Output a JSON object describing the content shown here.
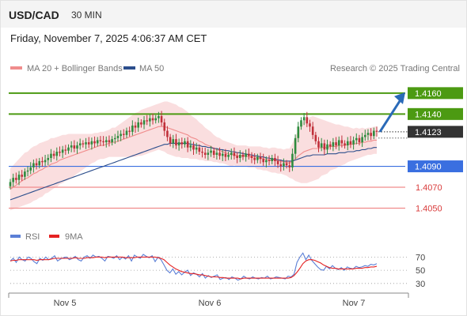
{
  "header": {
    "symbol": "USD/CAD",
    "timeframe": "30 MIN"
  },
  "datetime": "Friday, November 7, 2025 4:06:37 AM CET",
  "credit": "Research © 2025 Trading Central",
  "legend": {
    "bollinger": {
      "label": "MA 20 + Bollinger Bands",
      "color": "#f08c8c"
    },
    "ma50": {
      "label": "MA 50",
      "color": "#2c4e8c"
    },
    "rsi": {
      "label": "RSI",
      "color": "#5b7fd6"
    },
    "rsi_ma": {
      "label": "9MA",
      "color": "#e52222"
    }
  },
  "colors": {
    "bull": "#2e8b3e",
    "bear": "#c0303a",
    "resistance": "#4c9a12",
    "pivot": "#3a6fe0",
    "support": "#f08c8c",
    "last": "#333333",
    "arrow": "#2a6ab8",
    "band": "#fadadb"
  },
  "chart_data": [
    {
      "type": "candlestick",
      "title": "USD/CAD 30 MIN",
      "x_labels": [
        "Nov 5",
        "Nov 6",
        "Nov 7"
      ],
      "ylim": [
        1.403,
        1.4175
      ],
      "levels": [
        {
          "label": "1.4160",
          "value": 1.416,
          "kind": "resistance"
        },
        {
          "label": "1.4140",
          "value": 1.414,
          "kind": "resistance"
        },
        {
          "label": "1.4090",
          "value": 1.409,
          "kind": "pivot"
        },
        {
          "label": "1.4070",
          "value": 1.407,
          "kind": "support"
        },
        {
          "label": "1.4050",
          "value": 1.405,
          "kind": "support"
        }
      ],
      "last_price": {
        "label": "1.4123",
        "value": 1.4123
      },
      "forecast_target": 1.416,
      "close": [
        1.4075,
        1.4079,
        1.4077,
        1.4082,
        1.408,
        1.4085,
        1.4086,
        1.4089,
        1.4093,
        1.4091,
        1.4095,
        1.4094,
        1.4096,
        1.4098,
        1.4102,
        1.41,
        1.4104,
        1.4103,
        1.4106,
        1.4105,
        1.4108,
        1.411,
        1.4107,
        1.411,
        1.4112,
        1.4111,
        1.4113,
        1.4111,
        1.4114,
        1.4112,
        1.4115,
        1.4114,
        1.4113,
        1.4115,
        1.4113,
        1.4116,
        1.4117,
        1.4119,
        1.4121,
        1.412,
        1.4124,
        1.4123,
        1.4129,
        1.4127,
        1.4132,
        1.413,
        1.4134,
        1.4133,
        1.4136,
        1.4134,
        1.4136,
        1.4138,
        1.4132,
        1.4124,
        1.4118,
        1.4112,
        1.4116,
        1.411,
        1.4113,
        1.4111,
        1.4114,
        1.4108,
        1.411,
        1.4106,
        1.4108,
        1.4104,
        1.4103,
        1.4101,
        1.4103,
        1.4105,
        1.4101,
        1.4103,
        1.41,
        1.4102,
        1.4099,
        1.4101,
        1.4103,
        1.41,
        1.4098,
        1.4101,
        1.4099,
        1.4102,
        1.41,
        1.4098,
        1.4096,
        1.4099,
        1.4097,
        1.4094,
        1.4096,
        1.4095,
        1.4098,
        1.4095,
        1.4092,
        1.409,
        1.4093,
        1.4091,
        1.4089,
        1.4102,
        1.4117,
        1.4128,
        1.4134,
        1.4137,
        1.4131,
        1.4128,
        1.412,
        1.4114,
        1.4108,
        1.4112,
        1.4106,
        1.4111,
        1.4109,
        1.4113,
        1.411,
        1.4115,
        1.4112,
        1.411,
        1.4114,
        1.4111,
        1.4115,
        1.4117,
        1.4113,
        1.4118,
        1.412,
        1.4122,
        1.4119,
        1.4124,
        1.4123
      ],
      "ma20": [
        1.4068,
        1.407,
        1.4072,
        1.4074,
        1.4076,
        1.4078,
        1.4079,
        1.4081,
        1.4083,
        1.4084,
        1.4086,
        1.4087,
        1.4089,
        1.409,
        1.4092,
        1.4093,
        1.4094,
        1.4096,
        1.4097,
        1.4098,
        1.4099,
        1.41,
        1.4101,
        1.4102,
        1.4103,
        1.4104,
        1.4105,
        1.4106,
        1.4107,
        1.4108,
        1.4109,
        1.411,
        1.411,
        1.4111,
        1.4112,
        1.4113,
        1.4113,
        1.4114,
        1.4115,
        1.4116,
        1.4117,
        1.4118,
        1.4119,
        1.412,
        1.4121,
        1.4122,
        1.4123,
        1.4124,
        1.4125,
        1.4126,
        1.4127,
        1.4128,
        1.4128,
        1.4128,
        1.4127,
        1.4126,
        1.4125,
        1.4124,
        1.4123,
        1.4122,
        1.4121,
        1.412,
        1.4118,
        1.4117,
        1.4116,
        1.4114,
        1.4113,
        1.4111,
        1.411,
        1.4109,
        1.4107,
        1.4106,
        1.4105,
        1.4104,
        1.4103,
        1.4102,
        1.4101,
        1.4101,
        1.41,
        1.41,
        1.41,
        1.41,
        1.4099,
        1.4099,
        1.4099,
        1.4098,
        1.4098,
        1.4097,
        1.4097,
        1.4096,
        1.4096,
        1.4096,
        1.4095,
        1.4095,
        1.4094,
        1.4094,
        1.4093,
        1.4095,
        1.4097,
        1.41,
        1.4102,
        1.4104,
        1.4105,
        1.4106,
        1.4107,
        1.4107,
        1.4107,
        1.4108,
        1.4108,
        1.4108,
        1.4109,
        1.4109,
        1.4109,
        1.411,
        1.411,
        1.411,
        1.4111,
        1.4111,
        1.4111,
        1.4112,
        1.4112,
        1.4113,
        1.4113,
        1.4114,
        1.4114,
        1.4115,
        1.4115
      ],
      "bb_width": [
        0.002,
        0.0021,
        0.0022,
        0.0023,
        0.0024,
        0.0025,
        0.0025,
        0.0026,
        0.0026,
        0.0026,
        0.0026,
        0.0026,
        0.0025,
        0.0025,
        0.0025,
        0.0024,
        0.0024,
        0.0023,
        0.0023,
        0.0022,
        0.0022,
        0.0021,
        0.002,
        0.0019,
        0.0018,
        0.0017,
        0.0016,
        0.0015,
        0.0014,
        0.0014,
        0.0013,
        0.0013,
        0.0013,
        0.0013,
        0.0013,
        0.0014,
        0.0014,
        0.0015,
        0.0016,
        0.0017,
        0.0018,
        0.0019,
        0.002,
        0.0021,
        0.0021,
        0.0022,
        0.0022,
        0.0022,
        0.0022,
        0.0022,
        0.0022,
        0.0022,
        0.0023,
        0.0024,
        0.0025,
        0.0025,
        0.0025,
        0.0025,
        0.0024,
        0.0024,
        0.0023,
        0.0022,
        0.0021,
        0.002,
        0.0019,
        0.0018,
        0.0017,
        0.0016,
        0.0015,
        0.0014,
        0.0013,
        0.0012,
        0.0012,
        0.0011,
        0.0011,
        0.0011,
        0.0011,
        0.001,
        0.001,
        0.001,
        0.001,
        0.001,
        0.001,
        0.001,
        0.001,
        0.0011,
        0.0011,
        0.0011,
        0.0011,
        0.0011,
        0.0012,
        0.0012,
        0.0012,
        0.0012,
        0.0012,
        0.0013,
        0.0014,
        0.0017,
        0.0021,
        0.0025,
        0.0028,
        0.003,
        0.0031,
        0.0031,
        0.0031,
        0.003,
        0.0029,
        0.0027,
        0.0026,
        0.0025,
        0.0023,
        0.0022,
        0.0021,
        0.002,
        0.0019,
        0.0018,
        0.0017,
        0.0016,
        0.0015,
        0.0015,
        0.0014,
        0.0014,
        0.0013,
        0.0013,
        0.0013,
        0.0013,
        0.0013,
        0.0013,
        0.0013
      ],
      "ma50": [
        1.4058,
        1.4059,
        1.406,
        1.4061,
        1.4062,
        1.4063,
        1.4064,
        1.4065,
        1.4066,
        1.4067,
        1.4068,
        1.4069,
        1.407,
        1.4071,
        1.4072,
        1.4073,
        1.4074,
        1.4075,
        1.4076,
        1.4077,
        1.4078,
        1.4079,
        1.408,
        1.4081,
        1.4082,
        1.4083,
        1.4084,
        1.4085,
        1.4086,
        1.4087,
        1.4088,
        1.4089,
        1.409,
        1.4091,
        1.4092,
        1.4093,
        1.4094,
        1.4095,
        1.4096,
        1.4097,
        1.4098,
        1.4099,
        1.41,
        1.4101,
        1.4102,
        1.4103,
        1.4104,
        1.4105,
        1.4106,
        1.4107,
        1.4108,
        1.4109,
        1.411,
        1.4111,
        1.4111,
        1.4112,
        1.4112,
        1.4112,
        1.4112,
        1.4112,
        1.4112,
        1.4112,
        1.4111,
        1.4111,
        1.411,
        1.411,
        1.4109,
        1.4109,
        1.4108,
        1.4108,
        1.4107,
        1.4107,
        1.4106,
        1.4106,
        1.4105,
        1.4105,
        1.4104,
        1.4104,
        1.4103,
        1.4103,
        1.4102,
        1.4102,
        1.4101,
        1.4101,
        1.41,
        1.41,
        1.4099,
        1.4099,
        1.4098,
        1.4098,
        1.4097,
        1.4097,
        1.4096,
        1.4096,
        1.4095,
        1.4095,
        1.4095,
        1.4095,
        1.4096,
        1.4097,
        1.4098,
        1.4099,
        1.41,
        1.41,
        1.4101,
        1.4101,
        1.4101,
        1.4101,
        1.4101,
        1.4102,
        1.4102,
        1.4102,
        1.4102,
        1.4103,
        1.4103,
        1.4103,
        1.4104,
        1.4104,
        1.4104,
        1.4105,
        1.4105,
        1.4106,
        1.4106,
        1.4107,
        1.4107,
        1.4108,
        1.4108
      ]
    },
    {
      "type": "line",
      "title": "RSI",
      "ylim": [
        25,
        80
      ],
      "y_ticks": [
        "70",
        "50",
        "30"
      ],
      "y_tick_values": [
        70,
        50,
        30
      ],
      "series": [
        {
          "name": "RSI",
          "values": [
            64,
            68,
            62,
            70,
            66,
            64,
            70,
            68,
            63,
            60,
            68,
            65,
            70,
            66,
            68,
            72,
            64,
            67,
            69,
            70,
            66,
            68,
            71,
            66,
            64,
            70,
            72,
            68,
            73,
            70,
            71,
            68,
            64,
            71,
            70,
            68,
            72,
            66,
            70,
            67,
            72,
            64,
            73,
            70,
            68,
            74,
            71,
            69,
            72,
            63,
            70,
            66,
            58,
            50,
            46,
            52,
            44,
            48,
            43,
            47,
            50,
            42,
            46,
            44,
            40,
            45,
            38,
            42,
            39,
            41,
            43,
            36,
            38,
            39,
            36,
            40,
            38,
            35,
            37,
            41,
            38,
            37,
            40,
            38,
            37,
            39,
            38,
            41,
            37,
            38,
            40,
            39,
            38,
            37,
            41,
            40,
            44,
            62,
            70,
            76,
            66,
            73,
            65,
            60,
            55,
            51,
            50,
            56,
            52,
            57,
            53,
            51,
            54,
            50,
            55,
            53,
            52,
            56,
            54,
            55,
            57,
            56,
            59,
            58,
            60
          ]
        },
        {
          "name": "9MA",
          "values": [
            64,
            65,
            65,
            66,
            66,
            66,
            66,
            66,
            66,
            65,
            66,
            66,
            66,
            66,
            67,
            68,
            68,
            68,
            68,
            68,
            68,
            68,
            69,
            68,
            68,
            68,
            69,
            69,
            69,
            70,
            70,
            70,
            69,
            70,
            70,
            70,
            70,
            70,
            70,
            69,
            69,
            69,
            69,
            70,
            70,
            70,
            70,
            70,
            70,
            70,
            69,
            68,
            66,
            62,
            58,
            55,
            52,
            50,
            48,
            47,
            46,
            45,
            45,
            44,
            43,
            43,
            42,
            41,
            40,
            40,
            40,
            39,
            39,
            38,
            38,
            38,
            38,
            38,
            37,
            38,
            38,
            38,
            38,
            38,
            38,
            38,
            38,
            38,
            38,
            38,
            38,
            38,
            38,
            38,
            38,
            39,
            42,
            47,
            53,
            60,
            64,
            66,
            66,
            65,
            63,
            61,
            58,
            56,
            54,
            53,
            53,
            52,
            52,
            52,
            52,
            52,
            52,
            53,
            53,
            53,
            54,
            54,
            55,
            55,
            56
          ]
        }
      ]
    }
  ]
}
